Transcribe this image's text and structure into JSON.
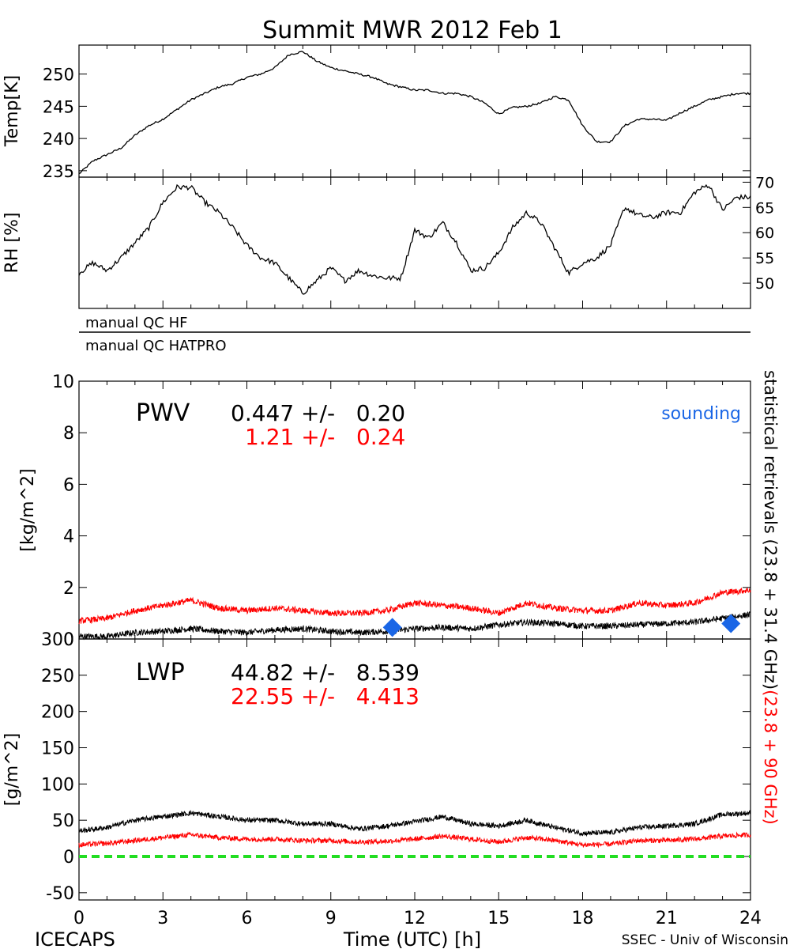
{
  "title": "Summit MWR 2012 Feb  1",
  "footer": {
    "left": "ICECAPS",
    "right": "SSEC - Univ of Wisconsin"
  },
  "qc": {
    "hf": "manual QC HF",
    "hatpro": "manual QC HATPRO"
  },
  "colors": {
    "black": "#000000",
    "red": "#ff0000",
    "blue": "#1a66e6",
    "green": "#22dd22"
  },
  "chart_data": [
    {
      "type": "line",
      "ylabel": "Temp[K]",
      "ylim": [
        234,
        254.5
      ],
      "yticks": [
        235,
        240,
        245,
        250
      ],
      "xlim": [
        0,
        24
      ],
      "series": [
        {
          "color": "#000000",
          "x": [
            0,
            0.5,
            1,
            1.5,
            2,
            2.5,
            3,
            3.5,
            4,
            4.5,
            5,
            5.5,
            6,
            6.5,
            7,
            7.5,
            8,
            8.5,
            9,
            9.5,
            10,
            10.5,
            11,
            11.5,
            12,
            12.5,
            13,
            13.5,
            14,
            14.5,
            15,
            15.5,
            16,
            16.5,
            17,
            17.5,
            18,
            18.5,
            19,
            19.5,
            20,
            20.5,
            21,
            21.5,
            22,
            22.5,
            23,
            23.5,
            24
          ],
          "y": [
            234.5,
            236.5,
            237.5,
            238.5,
            240.5,
            242,
            243,
            244.5,
            246,
            247,
            248,
            248.5,
            249.5,
            250,
            251,
            253,
            253.5,
            252,
            251,
            250.5,
            250,
            249.5,
            248.5,
            248,
            247.5,
            247.5,
            247,
            247,
            246.5,
            245.5,
            243.8,
            244.8,
            245,
            245.5,
            246.5,
            246,
            242,
            239.5,
            239.5,
            242,
            243,
            243,
            242.8,
            244,
            245,
            246,
            246.5,
            247,
            247
          ]
        }
      ]
    },
    {
      "type": "line",
      "ylabel": "RH [%]",
      "ylim": [
        45,
        71
      ],
      "yticks": [
        50,
        55,
        60,
        65,
        70
      ],
      "xlim": [
        0,
        24
      ],
      "series": [
        {
          "color": "#000000",
          "x": [
            0,
            0.5,
            1,
            1.5,
            2,
            2.5,
            3,
            3.5,
            4,
            4.5,
            5,
            5.5,
            6,
            6.5,
            7,
            7.5,
            8,
            8.5,
            9,
            9.5,
            10,
            10.5,
            11,
            11.5,
            12,
            12.5,
            13,
            13.5,
            14,
            14.5,
            15,
            15.5,
            16,
            16.5,
            17,
            17.5,
            18,
            18.5,
            19,
            19.5,
            20,
            20.5,
            21,
            21.5,
            22,
            22.5,
            23,
            23.5,
            24
          ],
          "y": [
            52,
            54,
            52.5,
            55,
            58,
            61,
            66,
            69,
            69,
            66,
            64,
            61,
            57.5,
            55,
            54,
            51,
            48,
            50.5,
            53,
            50.5,
            52.5,
            51.5,
            51,
            51,
            60.5,
            59,
            62,
            58,
            52.5,
            53,
            56,
            61,
            64,
            62,
            57,
            52,
            54,
            55,
            57.5,
            65,
            63.5,
            63,
            64,
            64,
            68,
            69.5,
            64.5,
            67,
            67
          ]
        }
      ]
    },
    {
      "type": "line",
      "title": "PWV",
      "ylabel": "[kg/m^2]",
      "ylim": [
        0,
        10
      ],
      "yticks": [
        0,
        2,
        4,
        6,
        8,
        10
      ],
      "xlim": [
        0,
        24
      ],
      "stats": [
        {
          "text": "0.447 +/-   0.20",
          "color": "#000000"
        },
        {
          "text": "1.21 +/-   0.24",
          "color": "#ff0000"
        }
      ],
      "legend": "sounding",
      "series": [
        {
          "color": "#000000",
          "x": [
            0,
            1,
            2,
            3,
            4,
            5,
            6,
            7,
            8,
            9,
            10,
            11,
            12,
            13,
            14,
            15,
            16,
            17,
            18,
            19,
            20,
            21,
            22,
            23,
            24
          ],
          "y": [
            0.1,
            0.1,
            0.25,
            0.3,
            0.4,
            0.3,
            0.25,
            0.35,
            0.4,
            0.3,
            0.25,
            0.3,
            0.4,
            0.45,
            0.4,
            0.55,
            0.65,
            0.6,
            0.5,
            0.5,
            0.55,
            0.6,
            0.65,
            0.8,
            0.95
          ]
        },
        {
          "color": "#ff0000",
          "x": [
            0,
            1,
            2,
            3,
            4,
            5,
            6,
            7,
            8,
            9,
            10,
            11,
            12,
            13,
            14,
            15,
            16,
            17,
            18,
            19,
            20,
            21,
            22,
            23,
            24
          ],
          "y": [
            0.7,
            0.8,
            1.1,
            1.3,
            1.5,
            1.2,
            1.1,
            1.2,
            1.1,
            1.0,
            1.0,
            1.1,
            1.4,
            1.3,
            1.2,
            1.0,
            1.4,
            1.2,
            1.1,
            1.1,
            1.4,
            1.3,
            1.4,
            1.8,
            1.9
          ]
        }
      ],
      "sounding": {
        "color": "#1a66e6",
        "x": [
          11.2,
          23.3
        ],
        "y": [
          0.45,
          0.6
        ]
      }
    },
    {
      "type": "line",
      "title": "LWP",
      "ylabel": "[g/m^2]",
      "xlabel": "Time (UTC) [h]",
      "ylim": [
        -60,
        300
      ],
      "yticks": [
        -50,
        0,
        50,
        100,
        150,
        200,
        250,
        300
      ],
      "xlim": [
        0,
        24
      ],
      "xticks": [
        0,
        3,
        6,
        9,
        12,
        15,
        18,
        21,
        24
      ],
      "stats": [
        {
          "text": "44.82 +/-   8.539",
          "color": "#000000"
        },
        {
          "text": "22.55 +/-   4.413",
          "color": "#ff0000"
        }
      ],
      "series": [
        {
          "color": "#000000",
          "x": [
            0,
            1,
            2,
            3,
            4,
            5,
            6,
            7,
            8,
            9,
            10,
            11,
            12,
            13,
            14,
            15,
            16,
            17,
            18,
            19,
            20,
            21,
            22,
            23,
            24
          ],
          "y": [
            35,
            40,
            50,
            55,
            60,
            55,
            50,
            50,
            45,
            45,
            38,
            42,
            48,
            55,
            45,
            42,
            50,
            40,
            32,
            33,
            40,
            42,
            45,
            58,
            60
          ]
        },
        {
          "color": "#ff0000",
          "x": [
            0,
            1,
            2,
            3,
            4,
            5,
            6,
            7,
            8,
            9,
            10,
            11,
            12,
            13,
            14,
            15,
            16,
            17,
            18,
            19,
            20,
            21,
            22,
            23,
            24
          ],
          "y": [
            16,
            18,
            22,
            26,
            30,
            26,
            24,
            24,
            22,
            22,
            20,
            21,
            24,
            28,
            24,
            20,
            26,
            22,
            16,
            17,
            22,
            22,
            24,
            28,
            30
          ]
        },
        {
          "color": "#22dd22",
          "style": "dashed",
          "x": [
            0,
            24
          ],
          "y": [
            0,
            0
          ]
        }
      ]
    }
  ],
  "right_label": {
    "black": "statistical  retrievals (23.8 + 31.4 GHz)",
    "red": "(23.8 + 90 GHz)"
  }
}
